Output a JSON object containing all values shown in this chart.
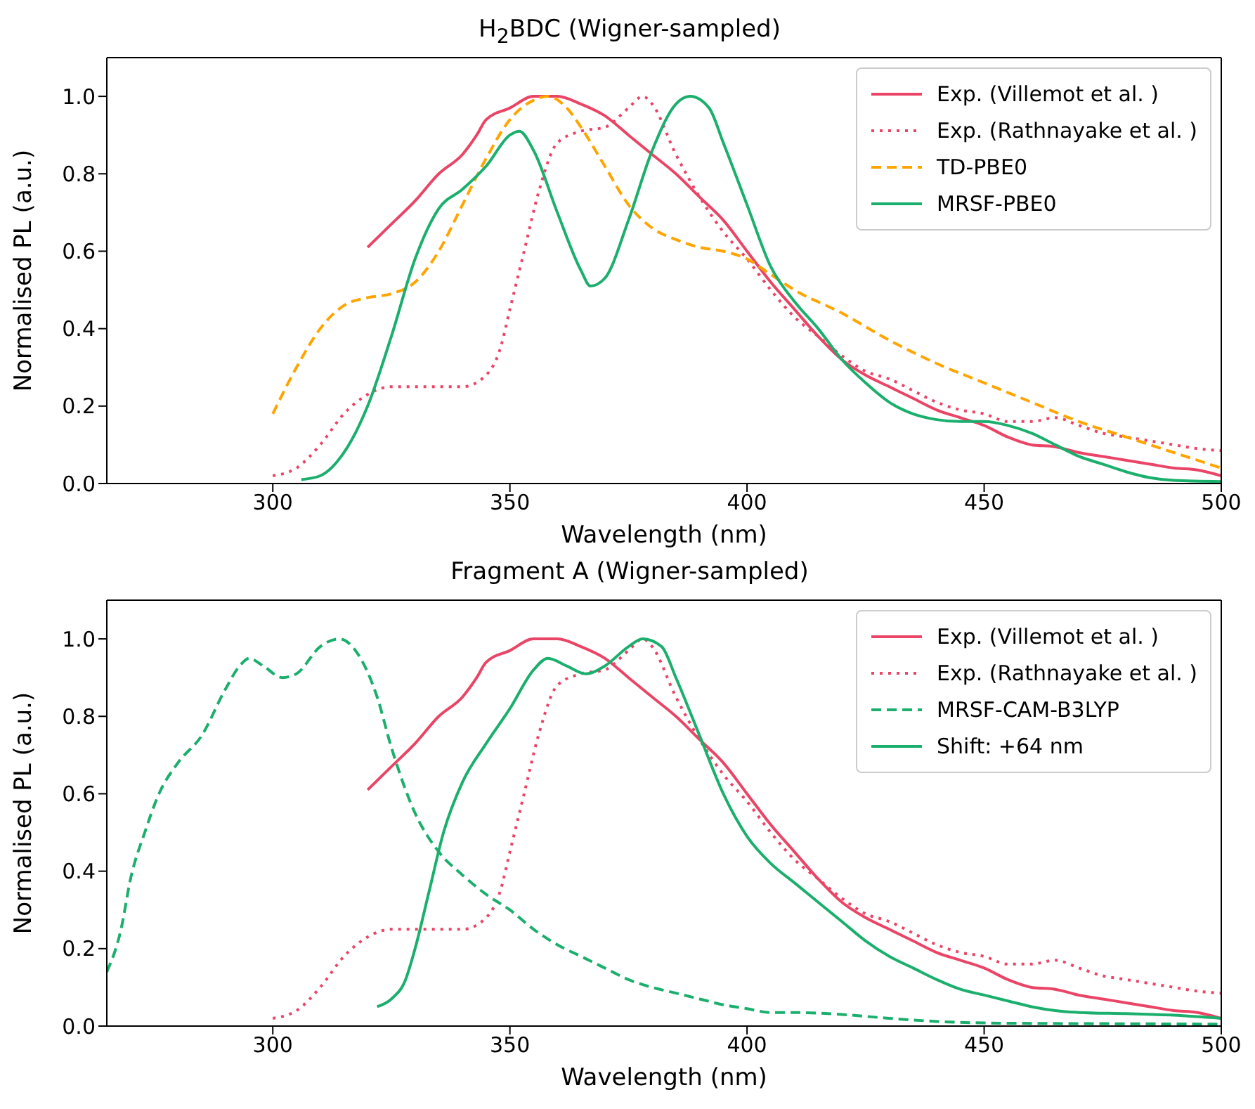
{
  "chart_data": [
    {
      "type": "line",
      "title": "H$_{2}$BDC (Wigner-sampled)",
      "xlabel": "Wavelength (nm)",
      "ylabel": "Normalised PL (a.u.)",
      "xlim": [
        265,
        500
      ],
      "ylim": [
        0,
        1.1
      ],
      "xticks": [
        300,
        350,
        400,
        450,
        500
      ],
      "yticks": [
        {
          "value": 0,
          "label": "0.0"
        },
        {
          "value": 0.2,
          "label": "0.2"
        },
        {
          "value": 0.4,
          "label": "0.4"
        },
        {
          "value": 0.6,
          "label": "0.6"
        },
        {
          "value": 0.8,
          "label": "0.8"
        },
        {
          "value": 1,
          "label": "1.0"
        }
      ],
      "legend": "top right",
      "marker": "none",
      "series": [
        {
          "name": "Exp. (Villemot et al. )",
          "color": "#ea4466",
          "line_style": "solid",
          "x": [
            320,
            325,
            330,
            335,
            340,
            343,
            345,
            350,
            355,
            360,
            365,
            370,
            375,
            380,
            385,
            390,
            395,
            400,
            405,
            410,
            415,
            420,
            425,
            430,
            435,
            440,
            445,
            450,
            455,
            460,
            465,
            470,
            475,
            480,
            485,
            490,
            495,
            500
          ],
          "values": [
            0.61,
            0.67,
            0.73,
            0.8,
            0.85,
            0.9,
            0.94,
            0.97,
            1.0,
            1.0,
            0.98,
            0.95,
            0.9,
            0.85,
            0.8,
            0.74,
            0.68,
            0.6,
            0.52,
            0.45,
            0.38,
            0.32,
            0.28,
            0.25,
            0.22,
            0.19,
            0.17,
            0.15,
            0.12,
            0.1,
            0.095,
            0.08,
            0.07,
            0.06,
            0.05,
            0.04,
            0.035,
            0.02
          ]
        },
        {
          "name": "Exp. (Rathnayake et al. )",
          "color": "#ea4466",
          "line_style": "dotted",
          "x": [
            300,
            305,
            310,
            315,
            320,
            325,
            330,
            335,
            340,
            345,
            348,
            350,
            353,
            356,
            360,
            365,
            370,
            375,
            378,
            380,
            385,
            390,
            395,
            400,
            405,
            410,
            415,
            420,
            425,
            430,
            435,
            440,
            445,
            450,
            455,
            460,
            465,
            470,
            475,
            480,
            485,
            490,
            495,
            500
          ],
          "values": [
            0.02,
            0.04,
            0.1,
            0.18,
            0.23,
            0.25,
            0.25,
            0.25,
            0.25,
            0.28,
            0.35,
            0.45,
            0.6,
            0.75,
            0.88,
            0.91,
            0.92,
            0.97,
            1.0,
            0.98,
            0.85,
            0.74,
            0.65,
            0.58,
            0.5,
            0.43,
            0.38,
            0.33,
            0.29,
            0.27,
            0.24,
            0.21,
            0.19,
            0.18,
            0.16,
            0.16,
            0.17,
            0.15,
            0.13,
            0.12,
            0.11,
            0.1,
            0.09,
            0.085
          ]
        },
        {
          "name": "TD-PBE0",
          "color": "#ffa500",
          "line_style": "dashed",
          "x": [
            300,
            305,
            310,
            315,
            320,
            325,
            330,
            335,
            340,
            345,
            350,
            355,
            358,
            362,
            365,
            370,
            375,
            380,
            385,
            390,
            395,
            400,
            405,
            410,
            420,
            430,
            440,
            450,
            460,
            470,
            480,
            490,
            500
          ],
          "values": [
            0.18,
            0.3,
            0.4,
            0.46,
            0.48,
            0.49,
            0.52,
            0.6,
            0.72,
            0.84,
            0.94,
            0.99,
            1.0,
            0.97,
            0.92,
            0.82,
            0.72,
            0.66,
            0.63,
            0.61,
            0.6,
            0.58,
            0.54,
            0.5,
            0.44,
            0.37,
            0.31,
            0.26,
            0.21,
            0.16,
            0.12,
            0.08,
            0.04
          ]
        },
        {
          "name": "MRSF-PBE0",
          "color": "#1aaf6c",
          "line_style": "solid",
          "x": [
            306,
            310,
            315,
            320,
            325,
            330,
            335,
            340,
            345,
            350,
            352,
            355,
            360,
            365,
            367,
            370,
            375,
            380,
            385,
            388,
            392,
            395,
            400,
            405,
            410,
            415,
            420,
            425,
            430,
            435,
            440,
            445,
            450,
            455,
            460,
            465,
            470,
            475,
            480,
            485,
            490,
            500
          ],
          "values": [
            0.01,
            0.02,
            0.08,
            0.2,
            0.38,
            0.58,
            0.71,
            0.76,
            0.82,
            0.9,
            0.91,
            0.86,
            0.7,
            0.55,
            0.51,
            0.53,
            0.68,
            0.86,
            0.98,
            1.0,
            0.97,
            0.88,
            0.72,
            0.56,
            0.47,
            0.4,
            0.32,
            0.26,
            0.21,
            0.18,
            0.165,
            0.16,
            0.16,
            0.15,
            0.13,
            0.1,
            0.07,
            0.05,
            0.03,
            0.015,
            0.008,
            0.005
          ]
        }
      ]
    },
    {
      "type": "line",
      "title": "Fragment A (Wigner-sampled)",
      "xlabel": "Wavelength (nm)",
      "ylabel": "Normalised PL (a.u.)",
      "xlim": [
        265,
        500
      ],
      "ylim": [
        0,
        1.1
      ],
      "xticks": [
        300,
        350,
        400,
        450,
        500
      ],
      "yticks": [
        {
          "value": 0,
          "label": "0.0"
        },
        {
          "value": 0.2,
          "label": "0.2"
        },
        {
          "value": 0.4,
          "label": "0.4"
        },
        {
          "value": 0.6,
          "label": "0.6"
        },
        {
          "value": 0.8,
          "label": "0.8"
        },
        {
          "value": 1,
          "label": "1.0"
        }
      ],
      "legend": "top right",
      "marker": "none",
      "series": [
        {
          "name": "Exp. (Villemot et al. )",
          "color": "#ea4466",
          "line_style": "solid",
          "x": [
            320,
            325,
            330,
            335,
            340,
            343,
            345,
            350,
            355,
            360,
            365,
            370,
            375,
            380,
            385,
            390,
            395,
            400,
            405,
            410,
            415,
            420,
            425,
            430,
            435,
            440,
            445,
            450,
            455,
            460,
            465,
            470,
            475,
            480,
            485,
            490,
            495,
            500
          ],
          "values": [
            0.61,
            0.67,
            0.73,
            0.8,
            0.85,
            0.9,
            0.94,
            0.97,
            1.0,
            1.0,
            0.98,
            0.95,
            0.9,
            0.85,
            0.8,
            0.74,
            0.68,
            0.6,
            0.52,
            0.45,
            0.38,
            0.32,
            0.28,
            0.25,
            0.22,
            0.19,
            0.17,
            0.15,
            0.12,
            0.1,
            0.095,
            0.08,
            0.07,
            0.06,
            0.05,
            0.04,
            0.035,
            0.02
          ]
        },
        {
          "name": "Exp. (Rathnayake et al. )",
          "color": "#ea4466",
          "line_style": "dotted",
          "x": [
            300,
            305,
            310,
            315,
            320,
            325,
            330,
            335,
            340,
            345,
            348,
            350,
            353,
            356,
            360,
            365,
            370,
            375,
            378,
            380,
            385,
            390,
            395,
            400,
            405,
            410,
            415,
            420,
            425,
            430,
            435,
            440,
            445,
            450,
            455,
            460,
            465,
            470,
            475,
            480,
            485,
            490,
            495,
            500
          ],
          "values": [
            0.02,
            0.04,
            0.1,
            0.18,
            0.23,
            0.25,
            0.25,
            0.25,
            0.25,
            0.28,
            0.35,
            0.45,
            0.6,
            0.75,
            0.88,
            0.91,
            0.92,
            0.97,
            1.0,
            0.98,
            0.85,
            0.74,
            0.65,
            0.58,
            0.5,
            0.43,
            0.38,
            0.33,
            0.29,
            0.27,
            0.24,
            0.21,
            0.19,
            0.18,
            0.16,
            0.16,
            0.17,
            0.15,
            0.13,
            0.12,
            0.11,
            0.1,
            0.09,
            0.085
          ]
        },
        {
          "name": "MRSF-CAM-B3LYP",
          "color": "#1aaf6c",
          "line_style": "dashed",
          "x": [
            265,
            268,
            270,
            273,
            276,
            280,
            285,
            290,
            293,
            295,
            298,
            302,
            305,
            310,
            314,
            318,
            322,
            325,
            330,
            335,
            340,
            345,
            350,
            355,
            360,
            365,
            370,
            375,
            380,
            385,
            390,
            395,
            400,
            405,
            410,
            420,
            430,
            440,
            450,
            460,
            480,
            500
          ],
          "values": [
            0.14,
            0.25,
            0.38,
            0.5,
            0.6,
            0.68,
            0.75,
            0.87,
            0.93,
            0.95,
            0.93,
            0.9,
            0.91,
            0.98,
            1.0,
            0.96,
            0.85,
            0.72,
            0.55,
            0.45,
            0.39,
            0.34,
            0.3,
            0.25,
            0.21,
            0.18,
            0.15,
            0.12,
            0.1,
            0.085,
            0.07,
            0.055,
            0.045,
            0.035,
            0.035,
            0.03,
            0.02,
            0.012,
            0.008,
            0.007,
            0.006,
            0.005
          ]
        },
        {
          "name": "Shift: +64 nm",
          "color": "#1aaf6c",
          "line_style": "solid",
          "x": [
            322,
            325,
            328,
            330,
            333,
            336,
            340,
            345,
            350,
            355,
            358,
            362,
            366,
            370,
            375,
            378,
            382,
            385,
            390,
            395,
            400,
            405,
            410,
            415,
            420,
            425,
            430,
            435,
            440,
            445,
            450,
            455,
            460,
            465,
            470,
            480,
            490,
            500
          ],
          "values": [
            0.05,
            0.07,
            0.12,
            0.2,
            0.35,
            0.5,
            0.63,
            0.73,
            0.82,
            0.92,
            0.95,
            0.93,
            0.91,
            0.93,
            0.98,
            1.0,
            0.98,
            0.9,
            0.75,
            0.6,
            0.49,
            0.42,
            0.37,
            0.32,
            0.27,
            0.22,
            0.18,
            0.15,
            0.12,
            0.095,
            0.08,
            0.065,
            0.05,
            0.04,
            0.035,
            0.032,
            0.028,
            0.02
          ]
        }
      ]
    }
  ]
}
